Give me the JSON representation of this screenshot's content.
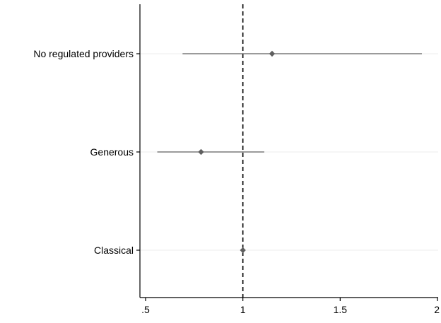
{
  "chart_data": {
    "type": "scatter",
    "title": "",
    "xlabel": "",
    "ylabel": "",
    "xlim": [
      0.5,
      2.0
    ],
    "x_ticks": [
      {
        "value": 0.5,
        "label": ".5"
      },
      {
        "value": 1.0,
        "label": "1"
      },
      {
        "value": 1.5,
        "label": "1.5"
      },
      {
        "value": 2.0,
        "label": "2"
      }
    ],
    "reference_line": {
      "x": 1.0,
      "style": "dashed"
    },
    "grid": "horizontal",
    "categories": [
      "No regulated providers",
      "Generous",
      "Classical"
    ],
    "points": [
      {
        "category": "No regulated providers",
        "estimate": 1.15,
        "ci_low": 0.69,
        "ci_high": 1.92
      },
      {
        "category": "Generous",
        "estimate": 0.785,
        "ci_low": 0.56,
        "ci_high": 1.11
      },
      {
        "category": "Classical",
        "estimate": 1.0,
        "ci_low": 1.0,
        "ci_high": 1.0
      }
    ],
    "colors": {
      "marker": "#5f5f5f",
      "ci": "#5f5f5f",
      "axis": "#000000",
      "grid": "#ececec",
      "refline": "#000000"
    }
  }
}
